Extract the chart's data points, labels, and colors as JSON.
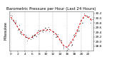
{
  "title": "Barometric Pressure per Hour (Last 24 Hours)",
  "left_label": "Milwaukee",
  "background_color": "#ffffff",
  "grid_color": "#999999",
  "line_color": "#dd0000",
  "dot_color": "#000000",
  "hours": [
    0,
    1,
    2,
    3,
    4,
    5,
    6,
    7,
    8,
    9,
    10,
    11,
    12,
    13,
    14,
    15,
    16,
    17,
    18,
    19,
    20,
    21,
    22,
    23
  ],
  "pressure": [
    30.05,
    29.85,
    29.6,
    29.38,
    29.22,
    29.12,
    29.18,
    29.3,
    29.42,
    29.5,
    29.48,
    29.52,
    29.42,
    29.3,
    29.05,
    28.82,
    28.75,
    28.92,
    29.18,
    29.52,
    29.88,
    30.12,
    30.05,
    29.9
  ],
  "ylim": [
    28.6,
    30.3
  ],
  "ytick_values": [
    28.8,
    29.0,
    29.2,
    29.4,
    29.6,
    29.8,
    30.0,
    30.2
  ],
  "grid_x": [
    0,
    4,
    8,
    12,
    16,
    20,
    23
  ],
  "xlim": [
    -0.5,
    23.5
  ],
  "xtick_positions": [
    0,
    2,
    4,
    6,
    8,
    10,
    12,
    14,
    16,
    18,
    20,
    22
  ],
  "title_fontsize": 4.0,
  "tick_fontsize": 3.2,
  "label_fontsize": 3.5,
  "figsize": [
    1.6,
    0.87
  ],
  "dpi": 100,
  "line_width": 0.7,
  "dot_size": 0.9
}
